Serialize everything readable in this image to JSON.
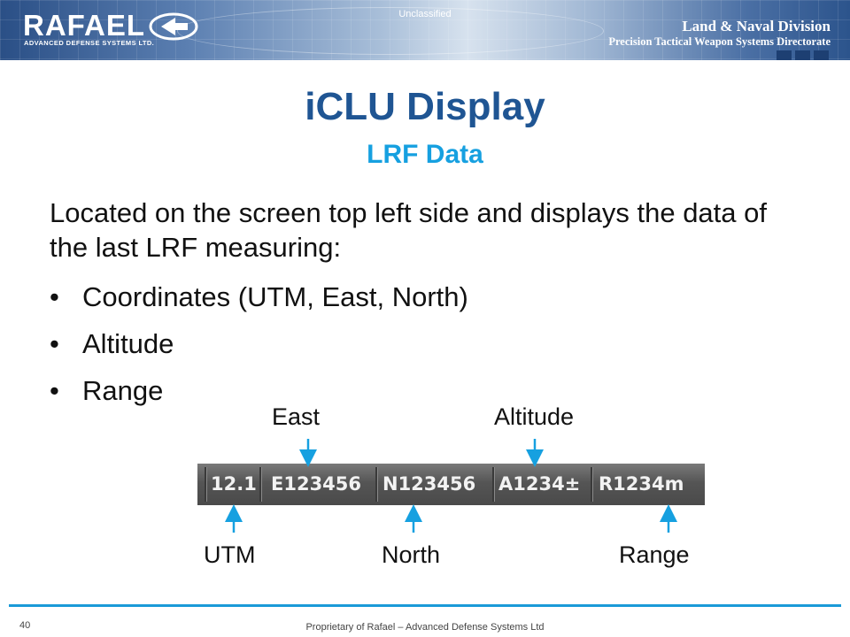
{
  "header": {
    "logo_word": "RAFAEL",
    "logo_sub": "ADVANCED DEFENSE SYSTEMS LTD.",
    "classification": "Unclassified",
    "division": "Land & Naval Division",
    "directorate": "Precision Tactical Weapon Systems Directorate"
  },
  "title": "iCLU Display",
  "subtitle": "LRF Data",
  "intro": "Located on the screen top left side and displays the data of the last LRF measuring:",
  "bullet_glyph": "•",
  "bullets": [
    "Coordinates (UTM, East, North)",
    "Altitude",
    "Range"
  ],
  "readout": {
    "utm": "12.1",
    "east": "E123456",
    "north": "N123456",
    "altitude": "A1234±",
    "range": "R1234m"
  },
  "callouts": {
    "east": "East",
    "altitude": "Altitude",
    "utm": "UTM",
    "north": "North",
    "range": "Range"
  },
  "colors": {
    "title": "#1f5593",
    "subtitle": "#16a0e0",
    "arrow": "#16a0e0",
    "footer_line": "#1a9ad8"
  },
  "footer": {
    "page_number": "40",
    "text": "Proprietary of Rafael – Advanced Defense Systems Ltd"
  }
}
